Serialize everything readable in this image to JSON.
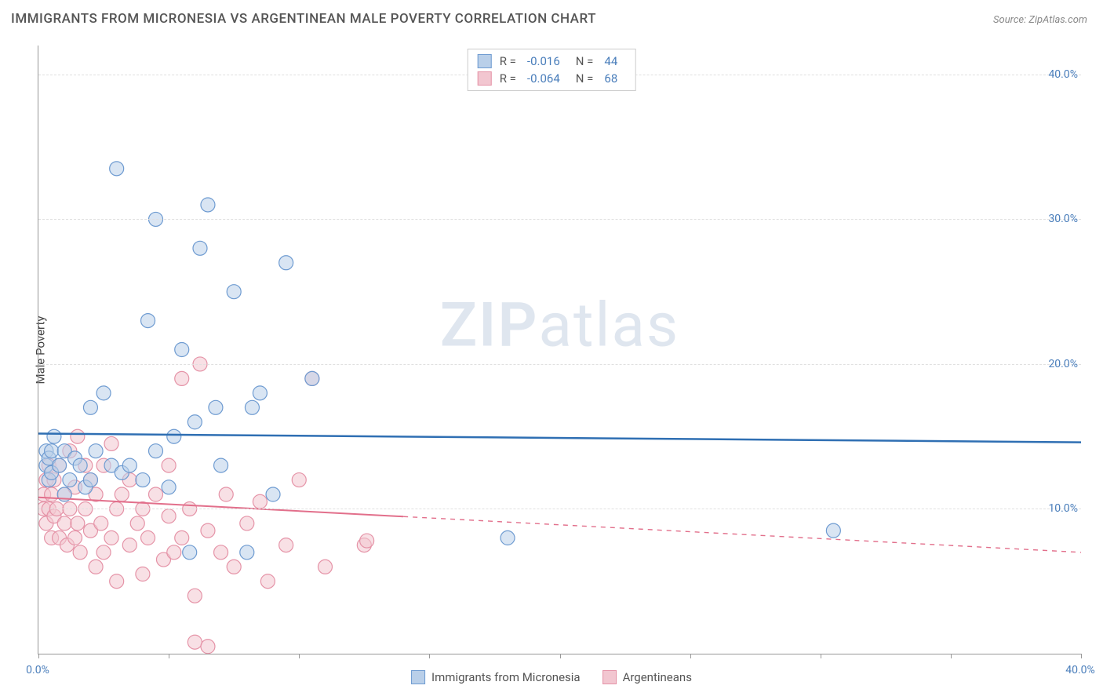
{
  "title": "IMMIGRANTS FROM MICRONESIA VS ARGENTINEAN MALE POVERTY CORRELATION CHART",
  "source": "Source: ZipAtlas.com",
  "watermark_a": "ZIP",
  "watermark_b": "atlas",
  "y_axis": {
    "label": "Male Poverty"
  },
  "x_axis": {
    "min": 0,
    "max": 40,
    "tick_labels": {
      "left": "0.0%",
      "right": "40.0%"
    },
    "minor_ticks": [
      0,
      5,
      10,
      15,
      20,
      25,
      30,
      35,
      40
    ]
  },
  "y_ticks": [
    {
      "v": 10,
      "label": "10.0%"
    },
    {
      "v": 20,
      "label": "20.0%"
    },
    {
      "v": 30,
      "label": "30.0%"
    },
    {
      "v": 40,
      "label": "40.0%"
    }
  ],
  "y_range": {
    "min": 0,
    "max": 42
  },
  "legend_top": [
    {
      "r": "-0.016",
      "n": "44",
      "fill": "#b9cfe9",
      "stroke": "#6e9bd1"
    },
    {
      "r": "-0.064",
      "n": "68",
      "fill": "#f2c6d0",
      "stroke": "#e593a7"
    }
  ],
  "legend_top_labels": {
    "r": "R =",
    "n": "N ="
  },
  "legend_bottom": [
    {
      "label": "Immigrants from Micronesia",
      "fill": "#b9cfe9",
      "stroke": "#6e9bd1"
    },
    {
      "label": "Argentineans",
      "fill": "#f2c6d0",
      "stroke": "#e593a7"
    }
  ],
  "series": {
    "micronesia": {
      "color_fill": "#b9cfe9",
      "color_stroke": "#6e9bd1",
      "marker_r": 9,
      "fill_opacity": 0.55,
      "line_color": "#2f6fb3",
      "line_width": 2.5,
      "trend": {
        "y_at_x0": 15.2,
        "y_at_xmax": 14.6,
        "solid_until_x": 40
      },
      "points": [
        [
          0.3,
          13
        ],
        [
          0.3,
          14
        ],
        [
          0.4,
          12
        ],
        [
          0.4,
          13.5
        ],
        [
          0.5,
          12.5
        ],
        [
          0.5,
          14
        ],
        [
          0.6,
          15
        ],
        [
          0.8,
          13
        ],
        [
          1.0,
          11
        ],
        [
          1.0,
          14
        ],
        [
          1.2,
          12
        ],
        [
          1.4,
          13.5
        ],
        [
          1.6,
          13
        ],
        [
          1.8,
          11.5
        ],
        [
          2.0,
          17
        ],
        [
          2.0,
          12
        ],
        [
          2.2,
          14
        ],
        [
          2.5,
          18
        ],
        [
          2.8,
          13
        ],
        [
          3.0,
          33.5
        ],
        [
          3.2,
          12.5
        ],
        [
          3.5,
          13
        ],
        [
          4.0,
          12
        ],
        [
          4.2,
          23
        ],
        [
          4.5,
          30
        ],
        [
          4.5,
          14
        ],
        [
          5.0,
          11.5
        ],
        [
          5.2,
          15
        ],
        [
          5.5,
          21
        ],
        [
          5.8,
          7
        ],
        [
          6.0,
          16
        ],
        [
          6.2,
          28
        ],
        [
          6.5,
          31
        ],
        [
          6.8,
          17
        ],
        [
          7.0,
          13
        ],
        [
          7.5,
          25
        ],
        [
          8.0,
          7
        ],
        [
          8.2,
          17
        ],
        [
          8.5,
          18
        ],
        [
          9.0,
          11
        ],
        [
          9.5,
          27
        ],
        [
          10.5,
          19
        ],
        [
          18.0,
          8
        ],
        [
          30.5,
          8.5
        ]
      ]
    },
    "argentineans": {
      "color_fill": "#f2c6d0",
      "color_stroke": "#e593a7",
      "marker_r": 9,
      "fill_opacity": 0.55,
      "line_color": "#e26f8b",
      "line_width": 2,
      "trend": {
        "y_at_x0": 10.8,
        "y_at_xmax": 7.0,
        "solid_until_x": 14
      },
      "points": [
        [
          0.2,
          10
        ],
        [
          0.2,
          11
        ],
        [
          0.3,
          9
        ],
        [
          0.3,
          12
        ],
        [
          0.4,
          10
        ],
        [
          0.4,
          13
        ],
        [
          0.5,
          8
        ],
        [
          0.5,
          11
        ],
        [
          0.6,
          9.5
        ],
        [
          0.6,
          12
        ],
        [
          0.7,
          10
        ],
        [
          0.8,
          8
        ],
        [
          0.8,
          13
        ],
        [
          1.0,
          9
        ],
        [
          1.0,
          11
        ],
        [
          1.1,
          7.5
        ],
        [
          1.2,
          10
        ],
        [
          1.2,
          14
        ],
        [
          1.4,
          8
        ],
        [
          1.4,
          11.5
        ],
        [
          1.5,
          9
        ],
        [
          1.5,
          15
        ],
        [
          1.6,
          7
        ],
        [
          1.8,
          10
        ],
        [
          1.8,
          13
        ],
        [
          2.0,
          8.5
        ],
        [
          2.0,
          12
        ],
        [
          2.2,
          6
        ],
        [
          2.2,
          11
        ],
        [
          2.4,
          9
        ],
        [
          2.5,
          7
        ],
        [
          2.5,
          13
        ],
        [
          2.8,
          8
        ],
        [
          2.8,
          14.5
        ],
        [
          3.0,
          10
        ],
        [
          3.0,
          5
        ],
        [
          3.2,
          11
        ],
        [
          3.5,
          7.5
        ],
        [
          3.5,
          12
        ],
        [
          3.8,
          9
        ],
        [
          4.0,
          5.5
        ],
        [
          4.0,
          10
        ],
        [
          4.2,
          8
        ],
        [
          4.5,
          11
        ],
        [
          4.8,
          6.5
        ],
        [
          5.0,
          9.5
        ],
        [
          5.0,
          13
        ],
        [
          5.2,
          7
        ],
        [
          5.5,
          8
        ],
        [
          5.5,
          19
        ],
        [
          5.8,
          10
        ],
        [
          6.0,
          4
        ],
        [
          6.0,
          0.8
        ],
        [
          6.2,
          20
        ],
        [
          6.5,
          8.5
        ],
        [
          6.5,
          0.5
        ],
        [
          7.0,
          7
        ],
        [
          7.2,
          11
        ],
        [
          7.5,
          6
        ],
        [
          8.0,
          9
        ],
        [
          8.5,
          10.5
        ],
        [
          8.8,
          5
        ],
        [
          9.5,
          7.5
        ],
        [
          10.0,
          12
        ],
        [
          10.5,
          19
        ],
        [
          11.0,
          6
        ],
        [
          12.5,
          7.5
        ],
        [
          12.6,
          7.8
        ]
      ]
    }
  },
  "colors": {
    "grid": "#e0e0e0",
    "axis": "#999",
    "tick_text": "#4a7ebb",
    "title_text": "#555"
  }
}
